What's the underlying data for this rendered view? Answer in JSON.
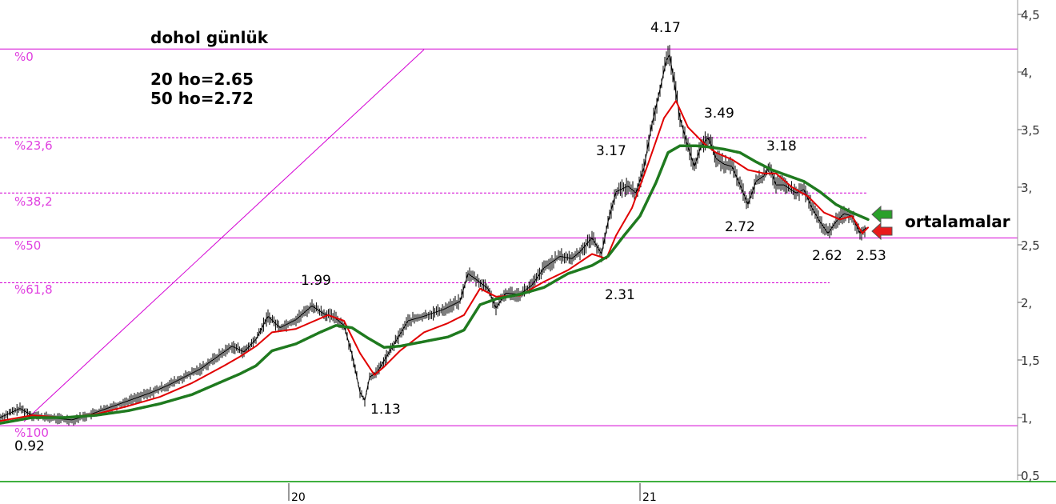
{
  "chart_data": {
    "type": "line",
    "title": "dohol günlük",
    "notes": [
      "20 ho=2.65",
      "50 ho=2.72"
    ],
    "right_label": "ortalamalar",
    "y_axis": {
      "ticks": [
        0.5,
        1,
        1.5,
        2,
        2.5,
        3,
        3.5,
        4,
        4.5
      ],
      "tick_labels": [
        "0,5",
        "1,",
        "1,5",
        "2,",
        "2,5",
        "3,",
        "3,5",
        "4,",
        "4,5"
      ],
      "range": [
        0.48,
        4.62
      ]
    },
    "x_axis": {
      "tick_labels": [
        "20",
        "21"
      ]
    },
    "fibonacci": [
      {
        "label": "%0",
        "value": 4.2
      },
      {
        "label": "%23,6",
        "value": 3.43
      },
      {
        "label": "%38,2",
        "value": 2.95
      },
      {
        "label": "%50",
        "value": 2.56
      },
      {
        "label": "%61,8",
        "value": 2.17
      },
      {
        "label": "%100",
        "value": 0.93
      }
    ],
    "annotations": [
      {
        "text": "4.17",
        "value": 4.17
      },
      {
        "text": "3.49",
        "value": 3.49
      },
      {
        "text": "3.17",
        "value": 3.17
      },
      {
        "text": "3.18",
        "value": 3.18
      },
      {
        "text": "2.72",
        "value": 2.72
      },
      {
        "text": "2.62",
        "value": 2.62
      },
      {
        "text": "2.53",
        "value": 2.53
      },
      {
        "text": "1.99",
        "value": 1.99
      },
      {
        "text": "2.31",
        "value": 2.31
      },
      {
        "text": "1.13",
        "value": 1.13
      },
      {
        "text": "0.92",
        "value": 0.92
      }
    ],
    "series": [
      {
        "type": "price",
        "color": "#000000",
        "values": [
          [
            0,
            1.0
          ],
          [
            25,
            1.08
          ],
          [
            40,
            1.02
          ],
          [
            60,
            1.0
          ],
          [
            90,
            0.98
          ],
          [
            110,
            1.02
          ],
          [
            130,
            1.07
          ],
          [
            150,
            1.12
          ],
          [
            170,
            1.17
          ],
          [
            190,
            1.22
          ],
          [
            210,
            1.28
          ],
          [
            230,
            1.35
          ],
          [
            250,
            1.42
          ],
          [
            270,
            1.52
          ],
          [
            290,
            1.62
          ],
          [
            305,
            1.57
          ],
          [
            320,
            1.68
          ],
          [
            335,
            1.88
          ],
          [
            350,
            1.78
          ],
          [
            370,
            1.85
          ],
          [
            390,
            1.97
          ],
          [
            405,
            1.9
          ],
          [
            418,
            1.87
          ],
          [
            430,
            1.8
          ],
          [
            440,
            1.55
          ],
          [
            450,
            1.22
          ],
          [
            456,
            1.15
          ],
          [
            462,
            1.35
          ],
          [
            472,
            1.4
          ],
          [
            485,
            1.55
          ],
          [
            498,
            1.7
          ],
          [
            510,
            1.84
          ],
          [
            530,
            1.88
          ],
          [
            555,
            1.94
          ],
          [
            575,
            2.01
          ],
          [
            585,
            2.25
          ],
          [
            595,
            2.2
          ],
          [
            610,
            2.12
          ],
          [
            620,
            1.95
          ],
          [
            632,
            2.08
          ],
          [
            650,
            2.07
          ],
          [
            665,
            2.15
          ],
          [
            680,
            2.3
          ],
          [
            700,
            2.4
          ],
          [
            715,
            2.38
          ],
          [
            725,
            2.44
          ],
          [
            740,
            2.56
          ],
          [
            752,
            2.42
          ],
          [
            760,
            2.7
          ],
          [
            770,
            2.96
          ],
          [
            785,
            3.01
          ],
          [
            795,
            2.95
          ],
          [
            805,
            3.17
          ],
          [
            815,
            3.55
          ],
          [
            825,
            3.85
          ],
          [
            833,
            4.1
          ],
          [
            837,
            4.15
          ],
          [
            843,
            3.9
          ],
          [
            850,
            3.6
          ],
          [
            860,
            3.35
          ],
          [
            868,
            3.18
          ],
          [
            876,
            3.35
          ],
          [
            885,
            3.43
          ],
          [
            890,
            3.35
          ],
          [
            895,
            3.25
          ],
          [
            905,
            3.2
          ],
          [
            915,
            3.18
          ],
          [
            925,
            3.02
          ],
          [
            935,
            2.85
          ],
          [
            945,
            3.05
          ],
          [
            955,
            3.1
          ],
          [
            962,
            3.18
          ],
          [
            970,
            3.02
          ],
          [
            980,
            3.02
          ],
          [
            995,
            2.95
          ],
          [
            1005,
            2.98
          ],
          [
            1015,
            2.82
          ],
          [
            1025,
            2.7
          ],
          [
            1035,
            2.6
          ],
          [
            1045,
            2.7
          ],
          [
            1055,
            2.77
          ],
          [
            1065,
            2.75
          ],
          [
            1075,
            2.6
          ],
          [
            1083,
            2.65
          ]
        ]
      },
      {
        "type": "ma20",
        "color": "#e10000",
        "values": [
          [
            0,
            0.97
          ],
          [
            40,
            1.02
          ],
          [
            80,
            1.0
          ],
          [
            120,
            1.03
          ],
          [
            160,
            1.1
          ],
          [
            200,
            1.18
          ],
          [
            240,
            1.3
          ],
          [
            280,
            1.45
          ],
          [
            300,
            1.53
          ],
          [
            320,
            1.62
          ],
          [
            340,
            1.74
          ],
          [
            370,
            1.77
          ],
          [
            410,
            1.89
          ],
          [
            430,
            1.84
          ],
          [
            450,
            1.56
          ],
          [
            468,
            1.37
          ],
          [
            480,
            1.44
          ],
          [
            500,
            1.58
          ],
          [
            530,
            1.74
          ],
          [
            560,
            1.82
          ],
          [
            580,
            1.89
          ],
          [
            600,
            2.12
          ],
          [
            620,
            2.05
          ],
          [
            650,
            2.06
          ],
          [
            680,
            2.18
          ],
          [
            710,
            2.28
          ],
          [
            740,
            2.42
          ],
          [
            758,
            2.38
          ],
          [
            770,
            2.58
          ],
          [
            790,
            2.82
          ],
          [
            810,
            3.2
          ],
          [
            830,
            3.6
          ],
          [
            845,
            3.75
          ],
          [
            860,
            3.52
          ],
          [
            880,
            3.38
          ],
          [
            895,
            3.3
          ],
          [
            915,
            3.24
          ],
          [
            935,
            3.15
          ],
          [
            955,
            3.12
          ],
          [
            970,
            3.12
          ],
          [
            990,
            3.0
          ],
          [
            1010,
            2.92
          ],
          [
            1030,
            2.78
          ],
          [
            1050,
            2.72
          ],
          [
            1065,
            2.75
          ],
          [
            1078,
            2.6
          ],
          [
            1085,
            2.65
          ]
        ]
      },
      {
        "type": "ma50",
        "color": "#1f7a1f",
        "values": [
          [
            0,
            0.95
          ],
          [
            40,
            1.0
          ],
          [
            80,
            1.0
          ],
          [
            120,
            1.02
          ],
          [
            160,
            1.06
          ],
          [
            200,
            1.12
          ],
          [
            240,
            1.2
          ],
          [
            280,
            1.32
          ],
          [
            300,
            1.38
          ],
          [
            320,
            1.45
          ],
          [
            340,
            1.58
          ],
          [
            370,
            1.64
          ],
          [
            400,
            1.74
          ],
          [
            420,
            1.8
          ],
          [
            440,
            1.78
          ],
          [
            460,
            1.69
          ],
          [
            480,
            1.61
          ],
          [
            500,
            1.62
          ],
          [
            530,
            1.66
          ],
          [
            560,
            1.7
          ],
          [
            580,
            1.76
          ],
          [
            600,
            1.98
          ],
          [
            620,
            2.03
          ],
          [
            650,
            2.07
          ],
          [
            680,
            2.13
          ],
          [
            710,
            2.25
          ],
          [
            740,
            2.32
          ],
          [
            760,
            2.4
          ],
          [
            780,
            2.58
          ],
          [
            800,
            2.75
          ],
          [
            820,
            3.04
          ],
          [
            835,
            3.3
          ],
          [
            850,
            3.36
          ],
          [
            870,
            3.36
          ],
          [
            885,
            3.35
          ],
          [
            905,
            3.33
          ],
          [
            925,
            3.3
          ],
          [
            945,
            3.22
          ],
          [
            965,
            3.15
          ],
          [
            985,
            3.1
          ],
          [
            1005,
            3.05
          ],
          [
            1025,
            2.96
          ],
          [
            1045,
            2.85
          ],
          [
            1065,
            2.78
          ],
          [
            1085,
            2.72
          ]
        ]
      }
    ],
    "legend_arrows": [
      {
        "series": "ma50",
        "color": "#2aa02a"
      },
      {
        "series": "ma20",
        "color": "#e81b1b"
      }
    ],
    "grid": false
  }
}
